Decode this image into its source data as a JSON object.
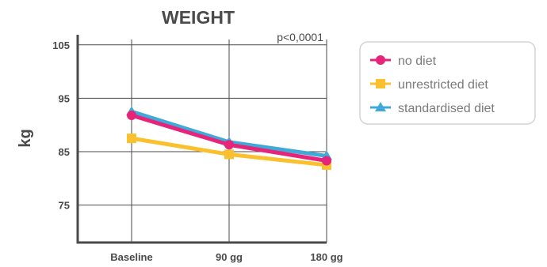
{
  "chart_data": {
    "type": "line",
    "title": "WEIGHT",
    "ylabel": "kg",
    "xlabel": "",
    "annotation": "p<0,0001",
    "categories": [
      "Baseline",
      "90 gg",
      "180 gg"
    ],
    "ylim": [
      68,
      106
    ],
    "yticks": [
      75,
      85,
      95,
      105
    ],
    "grid": true,
    "legend_position": "right",
    "series": [
      {
        "name": "no diet",
        "color": "#e5247a",
        "marker": "circle",
        "values": [
          91.8,
          86.3,
          83.3
        ]
      },
      {
        "name": "unrestricted diet",
        "color": "#fbc02d",
        "marker": "square",
        "values": [
          87.5,
          84.5,
          82.5
        ]
      },
      {
        "name": "standardised diet",
        "color": "#3fa9d8",
        "marker": "triangle",
        "values": [
          92.5,
          86.8,
          84.2
        ]
      }
    ]
  }
}
